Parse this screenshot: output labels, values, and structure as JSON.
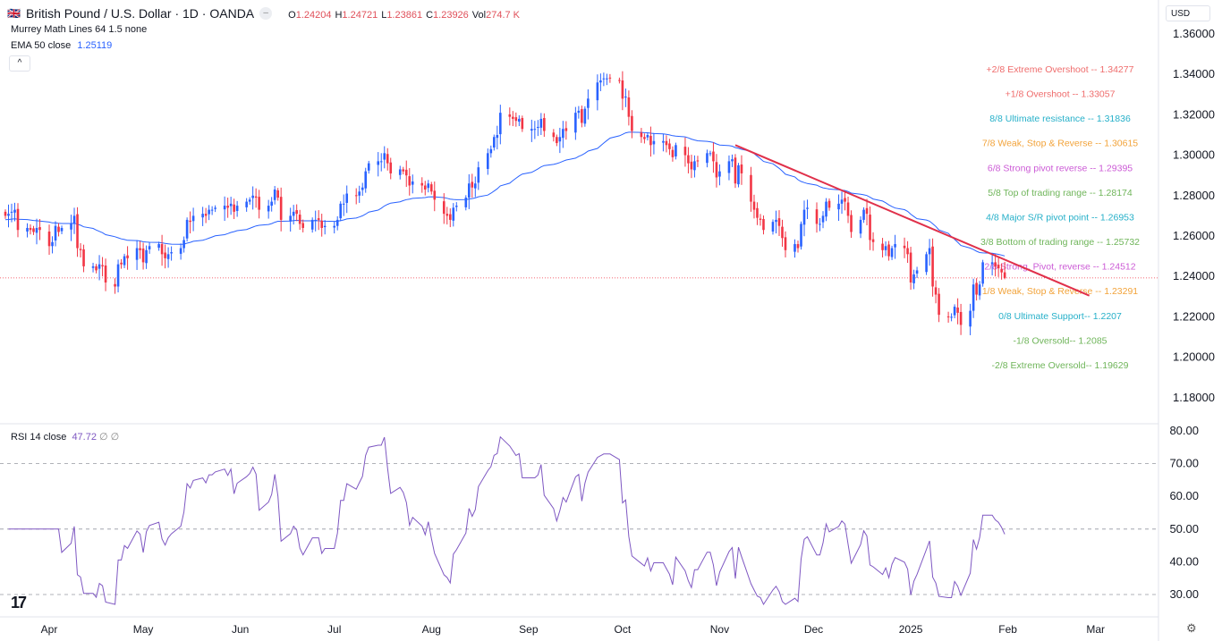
{
  "header": {
    "symbol_title": "British Pound / U.S. Dollar · 1D · OANDA",
    "ohlc": [
      {
        "k": "O",
        "v": "1.24204"
      },
      {
        "k": "H",
        "v": "1.24721"
      },
      {
        "k": "L",
        "v": "1.23861"
      },
      {
        "k": "C",
        "v": "1.23926"
      },
      {
        "k": "Vol",
        "v": "274.7 K"
      }
    ],
    "indicator1": "Murrey Math Lines 64 1.5 none",
    "indicator2_label": "EMA 50 close",
    "indicator2_value": "1.25119",
    "rsi_label": "RSI 14 close",
    "rsi_value": "47.72",
    "rsi_extra": "∅ ∅",
    "currency": "USD",
    "collapse_icon": "chevron-up-icon"
  },
  "colors": {
    "up": "#2962ff",
    "down": "#f23645",
    "ema": "#2962ff",
    "rsi": "#7e57c2",
    "trendline": "#e0304a",
    "price_line": "#f23645"
  },
  "chart_data": [
    {
      "type": "candlestick",
      "title": "British Pound / U.S. Dollar · 1D · OANDA",
      "ylim": [
        1.17,
        1.365
      ],
      "y_ticks": [
        "1.36000",
        "1.34000",
        "1.32000",
        "1.30000",
        "1.28000",
        "1.26000",
        "1.24000",
        "1.22000",
        "1.20000",
        "1.18000"
      ],
      "x_ticks": [
        {
          "label": "Apr",
          "date": "2024-04-01"
        },
        {
          "label": "May",
          "date": "2024-05-01"
        },
        {
          "label": "Jun",
          "date": "2024-06-01"
        },
        {
          "label": "Jul",
          "date": "2024-07-01"
        },
        {
          "label": "Aug",
          "date": "2024-08-01"
        },
        {
          "label": "Sep",
          "date": "2024-09-01"
        },
        {
          "label": "Oct",
          "date": "2024-10-01"
        },
        {
          "label": "Nov",
          "date": "2024-11-01"
        },
        {
          "label": "Dec",
          "date": "2024-12-01"
        },
        {
          "label": "2025",
          "date": "2025-01-01"
        },
        {
          "label": "Feb",
          "date": "2025-02-01"
        },
        {
          "label": "Mar",
          "date": "2025-03-01"
        }
      ],
      "weekly_closes": [
        {
          "week": "2024-03-18",
          "closes": [
            1.27,
            1.271,
            1.272,
            1.273,
            1.263
          ]
        },
        {
          "week": "2024-03-25",
          "closes": [
            1.264,
            1.263,
            1.262,
            1.264,
            1.263
          ]
        },
        {
          "week": "2024-04-01",
          "closes": [
            1.255,
            1.257,
            1.265,
            1.262,
            1.264
          ]
        },
        {
          "week": "2024-04-08",
          "closes": [
            1.266,
            1.27,
            1.254,
            1.253,
            1.245
          ]
        },
        {
          "week": "2024-04-15",
          "closes": [
            1.245,
            1.243,
            1.246,
            1.245,
            1.237
          ]
        },
        {
          "week": "2024-04-22",
          "closes": [
            1.235,
            1.246,
            1.246,
            1.25,
            1.249
          ]
        },
        {
          "week": "2024-04-29",
          "closes": [
            1.254,
            1.253,
            1.247,
            1.253,
            1.255
          ]
        },
        {
          "week": "2024-05-06",
          "closes": [
            1.256,
            1.251,
            1.249,
            1.251,
            1.252
          ]
        },
        {
          "week": "2024-05-13",
          "closes": [
            1.254,
            1.258,
            1.268,
            1.267,
            1.27
          ]
        },
        {
          "week": "2024-05-20",
          "closes": [
            1.271,
            1.27,
            1.273,
            1.273,
            1.274
          ]
        },
        {
          "week": "2024-05-27",
          "closes": [
            1.275,
            1.274,
            1.276,
            1.272,
            1.275
          ]
        },
        {
          "week": "2024-06-03",
          "closes": [
            1.277,
            1.278,
            1.28,
            1.279,
            1.273
          ]
        },
        {
          "week": "2024-06-10",
          "closes": [
            1.275,
            1.277,
            1.283,
            1.279,
            1.268
          ]
        },
        {
          "week": "2024-06-17",
          "closes": [
            1.27,
            1.272,
            1.271,
            1.266,
            1.264
          ]
        },
        {
          "week": "2024-06-24",
          "closes": [
            1.268,
            1.268,
            1.268,
            1.264,
            1.265
          ]
        },
        {
          "week": "2024-07-01",
          "closes": [
            1.265,
            1.268,
            1.276,
            1.276,
            1.281
          ]
        },
        {
          "week": "2024-07-08",
          "closes": [
            1.28,
            1.282,
            1.284,
            1.292,
            1.296
          ]
        },
        {
          "week": "2024-07-15",
          "closes": [
            1.297,
            1.297,
            1.301,
            1.296,
            1.291
          ]
        },
        {
          "week": "2024-07-22",
          "closes": [
            1.293,
            1.292,
            1.29,
            1.285,
            1.287
          ]
        },
        {
          "week": "2024-07-29",
          "closes": [
            1.285,
            1.283,
            1.286,
            1.282,
            1.278
          ]
        },
        {
          "week": "2024-08-05",
          "closes": [
            1.271,
            1.27,
            1.268,
            1.274,
            1.275
          ]
        },
        {
          "week": "2024-08-12",
          "closes": [
            1.279,
            1.286,
            1.284,
            1.286,
            1.294
          ]
        },
        {
          "week": "2024-08-19",
          "closes": [
            1.301,
            1.303,
            1.309,
            1.31,
            1.321
          ]
        },
        {
          "week": "2024-08-26",
          "closes": [
            1.319,
            1.318,
            1.317,
            1.318,
            1.313
          ]
        },
        {
          "week": "2024-09-02",
          "closes": [
            1.313,
            1.313,
            1.314,
            1.318,
            1.312
          ]
        },
        {
          "week": "2024-09-09",
          "closes": [
            1.309,
            1.306,
            1.309,
            1.313,
            1.312
          ]
        },
        {
          "week": "2024-09-16",
          "closes": [
            1.321,
            1.322,
            1.316,
            1.323,
            1.328
          ]
        },
        {
          "week": "2024-09-23",
          "closes": [
            1.336,
            1.337,
            1.338,
            1.338,
            1.338
          ]
        },
        {
          "week": "2024-09-30",
          "closes": [
            1.337,
            1.328,
            1.329,
            1.319,
            1.312
          ]
        },
        {
          "week": "2024-10-07",
          "closes": [
            1.309,
            1.308,
            1.31,
            1.305,
            1.307
          ]
        },
        {
          "week": "2024-10-14",
          "closes": [
            1.307,
            1.305,
            1.303,
            1.299,
            1.305
          ]
        },
        {
          "week": "2024-10-21",
          "closes": [
            1.3,
            1.296,
            1.293,
            1.297,
            1.297
          ]
        },
        {
          "week": "2024-10-28",
          "closes": [
            1.301,
            1.301,
            1.297,
            1.289,
            1.292
          ]
        },
        {
          "week": "2024-11-04",
          "closes": [
            1.297,
            1.298,
            1.286,
            1.295,
            1.291
          ]
        },
        {
          "week": "2024-11-11",
          "closes": [
            1.277,
            1.273,
            1.269,
            1.268,
            1.263
          ]
        },
        {
          "week": "2024-11-18",
          "closes": [
            1.267,
            1.268,
            1.265,
            1.259,
            1.253
          ]
        },
        {
          "week": "2024-11-25",
          "closes": [
            1.256,
            1.254,
            1.266,
            1.273,
            1.274
          ]
        },
        {
          "week": "2024-12-02",
          "closes": [
            1.266,
            1.266,
            1.27,
            1.277,
            1.274
          ]
        },
        {
          "week": "2024-12-09",
          "closes": [
            1.276,
            1.278,
            1.277,
            1.27,
            1.262
          ]
        },
        {
          "week": "2024-12-16",
          "closes": [
            1.268,
            1.273,
            1.271,
            1.258,
            1.257
          ]
        },
        {
          "week": "2024-12-23",
          "closes": [
            1.253,
            1.255,
            1.25,
            1.254,
            1.256
          ]
        },
        {
          "week": "2024-12-30",
          "closes": [
            1.254,
            1.251,
            1.237,
            1.241,
            1.243
          ]
        },
        {
          "week": "2025-01-06",
          "closes": [
            1.251,
            1.254,
            1.235,
            1.231,
            1.221
          ]
        },
        {
          "week": "2025-01-13",
          "closes": [
            1.22,
            1.22,
            1.225,
            1.222,
            1.216
          ]
        },
        {
          "week": "2025-01-20",
          "closes": [
            1.223,
            1.236,
            1.231,
            1.236,
            1.247
          ]
        },
        {
          "week": "2025-01-27",
          "closes": [
            1.247,
            1.245,
            1.244,
            1.242,
            1.239
          ]
        }
      ],
      "ema_period": 50,
      "last_price": 1.23926,
      "trendline": [
        {
          "date": "2024-11-06",
          "price": 1.305
        },
        {
          "date": "2025-02-27",
          "price": 1.2305
        }
      ],
      "murrey_lines": [
        {
          "label": "+2/8 Extreme Overshoot --  1.34277",
          "price": 1.34277,
          "color": "#ef6c6c"
        },
        {
          "label": "+1/8 Overshoot --  1.33057",
          "price": 1.33057,
          "color": "#ef6c6c"
        },
        {
          "label": "8/8 Ultimate resistance --  1.31836",
          "price": 1.31836,
          "color": "#26b0c9"
        },
        {
          "label": "7/8 Weak, Stop & Reverse --  1.30615",
          "price": 1.30615,
          "color": "#f2a33a"
        },
        {
          "label": "6/8 Strong pivot reverse --  1.29395",
          "price": 1.29395,
          "color": "#cc5bd6"
        },
        {
          "label": "5/8 Top of trading range --  1.28174",
          "price": 1.28174,
          "color": "#6fb55a"
        },
        {
          "label": "4/8 Major S/R pivot point --  1.26953",
          "price": 1.26953,
          "color": "#26b0c9"
        },
        {
          "label": "3/8 Bottom of trading range --  1.25732",
          "price": 1.25732,
          "color": "#6fb55a"
        },
        {
          "label": "2/8 Strong, Pivot, reverse --  1.24512",
          "price": 1.24512,
          "color": "#cc5bd6"
        },
        {
          "label": "1/8 Weak, Stop & Reverse --  1.23291",
          "price": 1.23291,
          "color": "#f2a33a"
        },
        {
          "label": "0/8 Ultimate Support--  1.2207",
          "price": 1.2207,
          "color": "#26b0c9"
        },
        {
          "label": "-1/8 Oversold--  1.2085",
          "price": 1.2085,
          "color": "#6fb55a"
        },
        {
          "label": "-2/8 Extreme Oversold--  1.19629",
          "price": 1.19629,
          "color": "#6fb55a"
        }
      ]
    },
    {
      "type": "line",
      "title": "RSI 14 close",
      "ylim": [
        25,
        82
      ],
      "y_ticks": [
        "80.00",
        "70.00",
        "60.00",
        "50.00",
        "40.00",
        "30.00"
      ],
      "levels": [
        70,
        50,
        30
      ],
      "period": 14
    }
  ]
}
